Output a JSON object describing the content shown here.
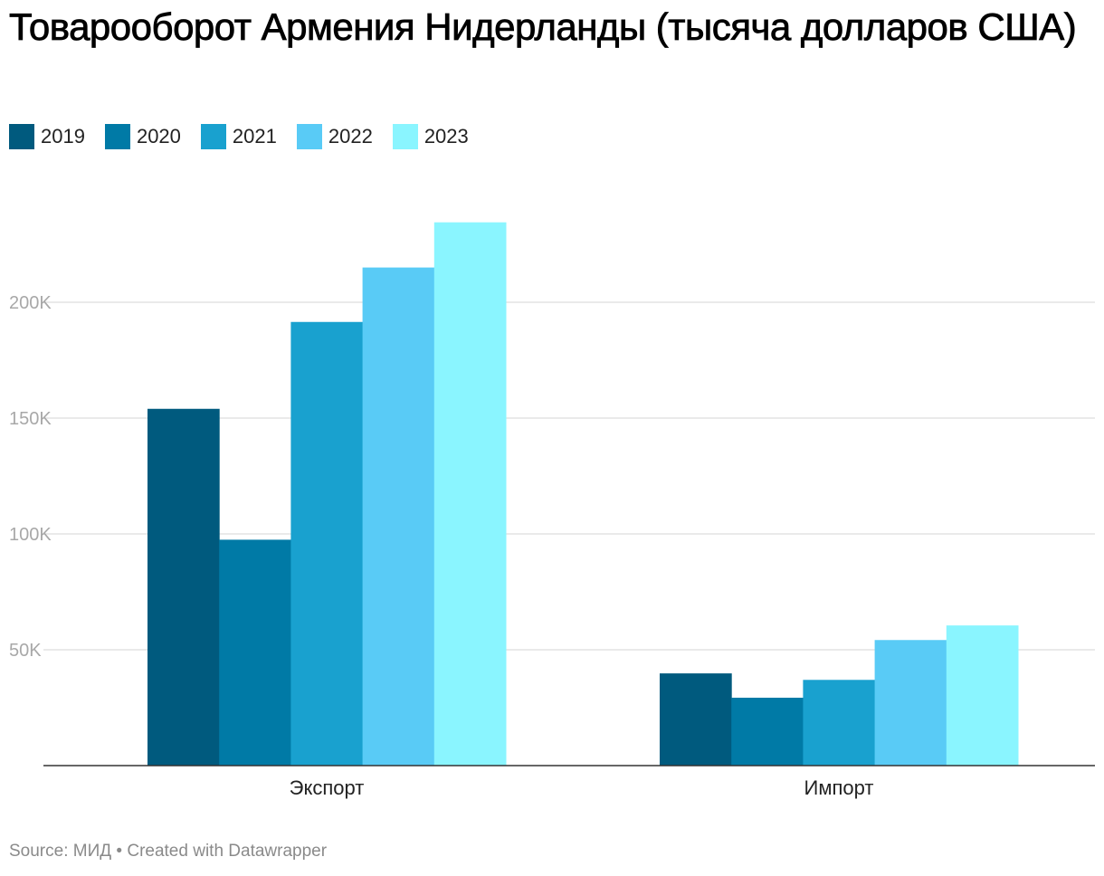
{
  "title": "Товарооборот Армения Нидерланды (тысяча долларов США)",
  "footer": {
    "source_label": "Source:",
    "source": "МИД",
    "separator": "•",
    "credit": "Created with Datawrapper"
  },
  "chart_data": {
    "type": "bar",
    "title": "Товарооборот Армения Нидерланды (тысяча долларов США)",
    "categories": [
      "Экспорт",
      "Импорт"
    ],
    "series": [
      {
        "name": "2019",
        "color": "#005a7e",
        "values": [
          154000,
          39800
        ]
      },
      {
        "name": "2020",
        "color": "#007aa6",
        "values": [
          97500,
          29300
        ]
      },
      {
        "name": "2021",
        "color": "#19a1cf",
        "values": [
          191500,
          37000
        ]
      },
      {
        "name": "2022",
        "color": "#59cbf6",
        "values": [
          215000,
          54200
        ]
      },
      {
        "name": "2023",
        "color": "#8af5ff",
        "values": [
          234500,
          60500
        ]
      }
    ],
    "yticks": [
      50000,
      100000,
      150000,
      200000
    ],
    "ytick_labels": [
      "50K",
      "100K",
      "150K",
      "200K"
    ],
    "ylim": [
      0,
      235000
    ],
    "xlabel": "",
    "ylabel": "",
    "grid": true,
    "legend_position": "top-left"
  }
}
